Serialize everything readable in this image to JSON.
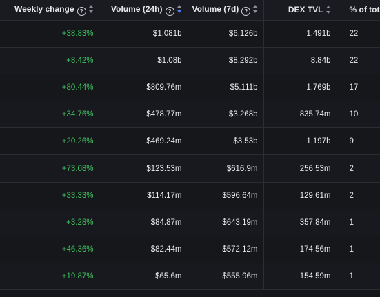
{
  "table": {
    "headers": [
      {
        "label": "Weekly change",
        "help": true,
        "sort": "default"
      },
      {
        "label": "Volume (24h)",
        "help": true,
        "sort": "active-desc"
      },
      {
        "label": "Volume (7d)",
        "help": true,
        "sort": "default"
      },
      {
        "label": "DEX TVL",
        "help": false,
        "sort": "default"
      },
      {
        "label": "% of tota",
        "help": false,
        "sort": "none"
      }
    ],
    "help_glyph": "?",
    "rows": [
      {
        "weekly_change": "+38.83%",
        "volume_24h": "$1.081b",
        "volume_7d": "$6.126b",
        "dex_tvl": "1.491b",
        "pct_total": "22"
      },
      {
        "weekly_change": "+8.42%",
        "volume_24h": "$1.08b",
        "volume_7d": "$8.292b",
        "dex_tvl": "8.84b",
        "pct_total": "22"
      },
      {
        "weekly_change": "+80.44%",
        "volume_24h": "$809.76m",
        "volume_7d": "$5.111b",
        "dex_tvl": "1.769b",
        "pct_total": "17"
      },
      {
        "weekly_change": "+34.76%",
        "volume_24h": "$478.77m",
        "volume_7d": "$3.268b",
        "dex_tvl": "835.74m",
        "pct_total": "10"
      },
      {
        "weekly_change": "+20.26%",
        "volume_24h": "$469.24m",
        "volume_7d": "$3.53b",
        "dex_tvl": "1.197b",
        "pct_total": "9"
      },
      {
        "weekly_change": "+73.08%",
        "volume_24h": "$123.53m",
        "volume_7d": "$616.9m",
        "dex_tvl": "256.53m",
        "pct_total": "2"
      },
      {
        "weekly_change": "+33.33%",
        "volume_24h": "$114.17m",
        "volume_7d": "$596.64m",
        "dex_tvl": "129.61m",
        "pct_total": "2"
      },
      {
        "weekly_change": "+3.28%",
        "volume_24h": "$84.87m",
        "volume_7d": "$643.19m",
        "dex_tvl": "357.84m",
        "pct_total": "1"
      },
      {
        "weekly_change": "+46.36%",
        "volume_24h": "$82.44m",
        "volume_7d": "$572.12m",
        "dex_tvl": "174.56m",
        "pct_total": "1"
      },
      {
        "weekly_change": "+19.87%",
        "volume_24h": "$65.6m",
        "volume_7d": "$555.96m",
        "dex_tvl": "154.59m",
        "pct_total": "1"
      }
    ]
  },
  "colors": {
    "background": "#16171b",
    "positive": "#3fbf5f",
    "sort_active": "#4f7ef7",
    "border": "#2b2d33"
  },
  "icons": {
    "help": "help-circle-icon",
    "sort": "sort-arrows-icon"
  }
}
